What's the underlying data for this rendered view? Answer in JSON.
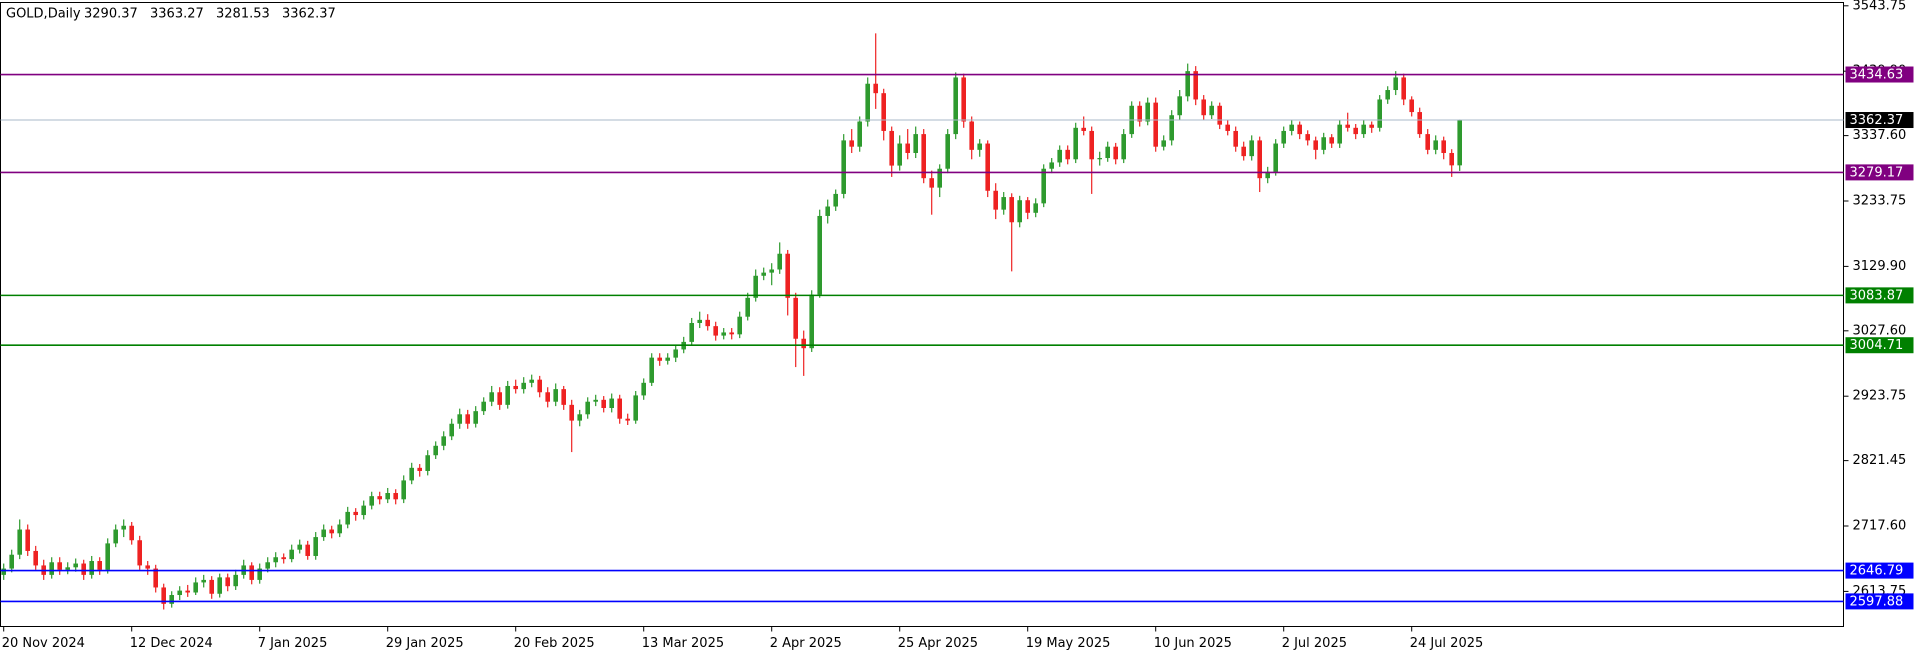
{
  "chart_data": {
    "type": "candlestick",
    "title": "GOLD,Daily",
    "up_color": "#2e9a2e",
    "down_color": "#ee2222",
    "ylim": [
      2558,
      3549
    ],
    "yticks": [
      3543.75,
      {
        "value": 3439.9,
        "label": "3439.90"
      },
      {
        "value": 3337.6,
        "label": "3337.60"
      },
      3233.75,
      {
        "value": 3129.9,
        "label": "3129.90"
      },
      {
        "value": 3027.6,
        "label": "3027.60"
      },
      2923.75,
      2821.45,
      {
        "value": 2717.6,
        "label": "2717.60"
      },
      2613.75
    ],
    "levels": [
      {
        "value": 3434.63,
        "color": "#800080"
      },
      {
        "value": 3362.37,
        "color": "#000000",
        "line_color": "#a8b8c8"
      },
      {
        "value": 3279.17,
        "color": "#800080"
      },
      {
        "value": 3083.87,
        "color": "#008000"
      },
      {
        "value": 3004.71,
        "color": "#008000"
      },
      {
        "value": 2646.79,
        "color": "#0000ff"
      },
      {
        "value": 2597.88,
        "color": "#0000ff"
      }
    ],
    "categories": [
      "20 Nov 2024",
      null,
      null,
      null,
      null,
      null,
      null,
      null,
      null,
      null,
      null,
      null,
      null,
      null,
      null,
      null,
      "12 Dec 2024",
      null,
      null,
      null,
      null,
      null,
      null,
      null,
      null,
      null,
      null,
      null,
      null,
      null,
      null,
      null,
      "7 Jan 2025",
      null,
      null,
      null,
      null,
      null,
      null,
      null,
      null,
      null,
      null,
      null,
      null,
      null,
      null,
      null,
      "29 Jan 2025",
      null,
      null,
      null,
      null,
      null,
      null,
      null,
      null,
      null,
      null,
      null,
      null,
      null,
      null,
      null,
      "20 Feb 2025",
      null,
      null,
      null,
      null,
      null,
      null,
      null,
      null,
      null,
      null,
      null,
      null,
      null,
      null,
      null,
      "13 Mar 2025",
      null,
      null,
      null,
      null,
      null,
      null,
      null,
      null,
      null,
      null,
      null,
      null,
      null,
      null,
      null,
      "2 Apr 2025",
      null,
      null,
      null,
      null,
      null,
      null,
      null,
      null,
      null,
      null,
      null,
      null,
      null,
      null,
      null,
      "25 Apr 2025",
      null,
      null,
      null,
      null,
      null,
      null,
      null,
      null,
      null,
      null,
      null,
      null,
      null,
      null,
      null,
      "19 May 2025",
      null,
      null,
      null,
      null,
      null,
      null,
      null,
      null,
      null,
      null,
      null,
      null,
      null,
      null,
      null,
      "10 Jun 2025",
      null,
      null,
      null,
      null,
      null,
      null,
      null,
      null,
      null,
      null,
      null,
      null,
      null,
      null,
      null,
      "2 Jul 2025",
      null,
      null,
      null,
      null,
      null,
      null,
      null,
      null,
      null,
      null,
      null,
      null,
      null,
      null,
      null,
      "24 Jul 2025",
      null,
      null,
      null,
      null,
      null,
      null
    ],
    "values": [
      [
        2640,
        2658,
        2632,
        2650
      ],
      [
        2650,
        2680,
        2644,
        2672
      ],
      [
        2672,
        2728,
        2665,
        2712
      ],
      [
        2712,
        2720,
        2670,
        2678
      ],
      [
        2678,
        2686,
        2648,
        2655
      ],
      [
        2655,
        2664,
        2632,
        2640
      ],
      [
        2640,
        2668,
        2634,
        2660
      ],
      [
        2660,
        2668,
        2640,
        2648
      ],
      [
        2648,
        2660,
        2641,
        2652
      ],
      [
        2652,
        2666,
        2645,
        2658
      ],
      [
        2658,
        2664,
        2632,
        2640
      ],
      [
        2640,
        2670,
        2634,
        2662
      ],
      [
        2662,
        2668,
        2640,
        2648
      ],
      [
        2648,
        2698,
        2642,
        2690
      ],
      [
        2690,
        2720,
        2684,
        2712
      ],
      [
        2712,
        2728,
        2700,
        2718
      ],
      [
        2718,
        2724,
        2688,
        2695
      ],
      [
        2695,
        2702,
        2648,
        2655
      ],
      [
        2655,
        2662,
        2640,
        2650
      ],
      [
        2650,
        2656,
        2612,
        2620
      ],
      [
        2620,
        2626,
        2585,
        2594
      ],
      [
        2594,
        2614,
        2588,
        2608
      ],
      [
        2608,
        2622,
        2600,
        2615
      ],
      [
        2615,
        2624,
        2605,
        2612
      ],
      [
        2612,
        2636,
        2608,
        2628
      ],
      [
        2628,
        2640,
        2620,
        2632
      ],
      [
        2632,
        2638,
        2602,
        2610
      ],
      [
        2610,
        2642,
        2604,
        2636
      ],
      [
        2636,
        2642,
        2614,
        2622
      ],
      [
        2622,
        2648,
        2616,
        2640
      ],
      [
        2640,
        2664,
        2634,
        2655
      ],
      [
        2655,
        2660,
        2625,
        2632
      ],
      [
        2632,
        2658,
        2626,
        2650
      ],
      [
        2650,
        2668,
        2644,
        2660
      ],
      [
        2660,
        2676,
        2652,
        2668
      ],
      [
        2668,
        2674,
        2658,
        2665
      ],
      [
        2665,
        2688,
        2660,
        2680
      ],
      [
        2680,
        2696,
        2674,
        2688
      ],
      [
        2688,
        2694,
        2664,
        2670
      ],
      [
        2670,
        2708,
        2664,
        2700
      ],
      [
        2700,
        2720,
        2694,
        2712
      ],
      [
        2712,
        2718,
        2698,
        2706
      ],
      [
        2706,
        2728,
        2700,
        2720
      ],
      [
        2720,
        2748,
        2714,
        2740
      ],
      [
        2740,
        2746,
        2726,
        2735
      ],
      [
        2735,
        2758,
        2728,
        2750
      ],
      [
        2750,
        2772,
        2744,
        2765
      ],
      [
        2765,
        2772,
        2752,
        2760
      ],
      [
        2760,
        2778,
        2754,
        2770
      ],
      [
        2770,
        2776,
        2752,
        2760
      ],
      [
        2760,
        2798,
        2754,
        2790
      ],
      [
        2790,
        2818,
        2784,
        2810
      ],
      [
        2810,
        2816,
        2796,
        2805
      ],
      [
        2805,
        2838,
        2798,
        2830
      ],
      [
        2830,
        2852,
        2824,
        2845
      ],
      [
        2845,
        2868,
        2838,
        2860
      ],
      [
        2860,
        2888,
        2854,
        2880
      ],
      [
        2880,
        2904,
        2872,
        2895
      ],
      [
        2895,
        2902,
        2872,
        2880
      ],
      [
        2880,
        2908,
        2874,
        2900
      ],
      [
        2900,
        2922,
        2894,
        2915
      ],
      [
        2915,
        2940,
        2908,
        2930
      ],
      [
        2930,
        2938,
        2902,
        2910
      ],
      [
        2910,
        2948,
        2904,
        2940
      ],
      [
        2940,
        2950,
        2928,
        2935
      ],
      [
        2935,
        2954,
        2928,
        2945
      ],
      [
        2945,
        2958,
        2938,
        2950
      ],
      [
        2950,
        2956,
        2922,
        2930
      ],
      [
        2930,
        2938,
        2906,
        2915
      ],
      [
        2915,
        2944,
        2908,
        2935
      ],
      [
        2935,
        2940,
        2902,
        2910
      ],
      [
        2910,
        2918,
        2835,
        2885
      ],
      [
        2885,
        2902,
        2876,
        2895
      ],
      [
        2895,
        2922,
        2888,
        2915
      ],
      [
        2915,
        2926,
        2908,
        2918
      ],
      [
        2918,
        2924,
        2898,
        2905
      ],
      [
        2905,
        2928,
        2898,
        2920
      ],
      [
        2920,
        2926,
        2880,
        2888
      ],
      [
        2888,
        2896,
        2878,
        2885
      ],
      [
        2885,
        2932,
        2880,
        2925
      ],
      [
        2925,
        2952,
        2918,
        2945
      ],
      [
        2945,
        2992,
        2940,
        2985
      ],
      [
        2985,
        2992,
        2972,
        2980
      ],
      [
        2980,
        2992,
        2974,
        2985
      ],
      [
        2985,
        3004,
        2978,
        2998
      ],
      [
        2998,
        3018,
        2992,
        3010
      ],
      [
        3010,
        3048,
        3004,
        3040
      ],
      [
        3040,
        3058,
        3032,
        3045
      ],
      [
        3045,
        3054,
        3028,
        3035
      ],
      [
        3035,
        3042,
        3012,
        3020
      ],
      [
        3020,
        3032,
        3014,
        3025
      ],
      [
        3025,
        3032,
        3014,
        3022
      ],
      [
        3022,
        3058,
        3016,
        3050
      ],
      [
        3050,
        3088,
        3044,
        3080
      ],
      [
        3080,
        3125,
        3074,
        3115
      ],
      [
        3115,
        3128,
        3108,
        3120
      ],
      [
        3120,
        3135,
        3100,
        3125
      ],
      [
        3125,
        3168,
        3118,
        3150
      ],
      [
        3150,
        3156,
        3052,
        3080
      ],
      [
        3080,
        3088,
        2970,
        3015
      ],
      [
        3015,
        3028,
        2956,
        3000
      ],
      [
        3000,
        3092,
        2994,
        3085
      ],
      [
        3085,
        3220,
        3080,
        3210
      ],
      [
        3210,
        3236,
        3198,
        3225
      ],
      [
        3225,
        3252,
        3218,
        3245
      ],
      [
        3245,
        3340,
        3238,
        3330
      ],
      [
        3330,
        3348,
        3310,
        3320
      ],
      [
        3320,
        3368,
        3312,
        3360
      ],
      [
        3360,
        3430,
        3352,
        3420
      ],
      [
        3420,
        3500,
        3380,
        3405
      ],
      [
        3405,
        3412,
        3330,
        3345
      ],
      [
        3345,
        3352,
        3272,
        3290
      ],
      [
        3290,
        3338,
        3282,
        3325
      ],
      [
        3325,
        3348,
        3300,
        3310
      ],
      [
        3310,
        3352,
        3302,
        3340
      ],
      [
        3340,
        3348,
        3262,
        3270
      ],
      [
        3270,
        3282,
        3212,
        3255
      ],
      [
        3255,
        3292,
        3240,
        3285
      ],
      [
        3285,
        3348,
        3278,
        3340
      ],
      [
        3340,
        3438,
        3332,
        3430
      ],
      [
        3430,
        3436,
        3350,
        3360
      ],
      [
        3360,
        3368,
        3300,
        3315
      ],
      [
        3315,
        3332,
        3304,
        3325
      ],
      [
        3325,
        3330,
        3240,
        3250
      ],
      [
        3250,
        3262,
        3205,
        3220
      ],
      [
        3220,
        3248,
        3212,
        3240
      ],
      [
        3240,
        3246,
        3122,
        3200
      ],
      [
        3200,
        3242,
        3192,
        3235
      ],
      [
        3235,
        3240,
        3205,
        3215
      ],
      [
        3215,
        3238,
        3208,
        3230
      ],
      [
        3230,
        3292,
        3224,
        3285
      ],
      [
        3285,
        3302,
        3278,
        3295
      ],
      [
        3295,
        3322,
        3288,
        3315
      ],
      [
        3315,
        3322,
        3292,
        3300
      ],
      [
        3300,
        3358,
        3294,
        3350
      ],
      [
        3350,
        3368,
        3338,
        3345
      ],
      [
        3345,
        3352,
        3245,
        3300
      ],
      [
        3300,
        3312,
        3290,
        3302
      ],
      [
        3302,
        3328,
        3296,
        3320
      ],
      [
        3320,
        3326,
        3292,
        3300
      ],
      [
        3300,
        3348,
        3294,
        3340
      ],
      [
        3340,
        3392,
        3334,
        3385
      ],
      [
        3385,
        3392,
        3352,
        3360
      ],
      [
        3360,
        3398,
        3354,
        3390
      ],
      [
        3390,
        3398,
        3312,
        3320
      ],
      [
        3320,
        3338,
        3314,
        3330
      ],
      [
        3330,
        3378,
        3322,
        3370
      ],
      [
        3370,
        3410,
        3362,
        3400
      ],
      [
        3400,
        3452,
        3392,
        3440
      ],
      [
        3440,
        3448,
        3386,
        3395
      ],
      [
        3395,
        3402,
        3362,
        3370
      ],
      [
        3370,
        3392,
        3364,
        3385
      ],
      [
        3385,
        3390,
        3348,
        3355
      ],
      [
        3355,
        3362,
        3338,
        3345
      ],
      [
        3345,
        3352,
        3312,
        3320
      ],
      [
        3320,
        3328,
        3298,
        3305
      ],
      [
        3305,
        3338,
        3298,
        3330
      ],
      [
        3330,
        3336,
        3248,
        3270
      ],
      [
        3270,
        3288,
        3262,
        3280
      ],
      [
        3280,
        3332,
        3274,
        3325
      ],
      [
        3325,
        3352,
        3318,
        3345
      ],
      [
        3345,
        3362,
        3338,
        3355
      ],
      [
        3355,
        3360,
        3332,
        3340
      ],
      [
        3340,
        3346,
        3322,
        3330
      ],
      [
        3330,
        3336,
        3300,
        3315
      ],
      [
        3315,
        3342,
        3308,
        3335
      ],
      [
        3335,
        3340,
        3318,
        3325
      ],
      [
        3325,
        3362,
        3318,
        3355
      ],
      [
        3355,
        3374,
        3344,
        3350
      ],
      [
        3350,
        3356,
        3332,
        3340
      ],
      [
        3340,
        3362,
        3334,
        3355
      ],
      [
        3355,
        3360,
        3342,
        3350
      ],
      [
        3350,
        3402,
        3344,
        3395
      ],
      [
        3395,
        3416,
        3388,
        3410
      ],
      [
        3410,
        3440,
        3402,
        3430
      ],
      [
        3430,
        3436,
        3386,
        3395
      ],
      [
        3395,
        3400,
        3368,
        3375
      ],
      [
        3375,
        3382,
        3334,
        3340
      ],
      [
        3340,
        3348,
        3308,
        3315
      ],
      [
        3315,
        3338,
        3308,
        3330
      ],
      [
        3330,
        3336,
        3300,
        3310
      ],
      [
        3310,
        3316,
        3272,
        3290.37
      ],
      [
        3290.37,
        3363.27,
        3281.53,
        3362.37
      ]
    ]
  }
}
